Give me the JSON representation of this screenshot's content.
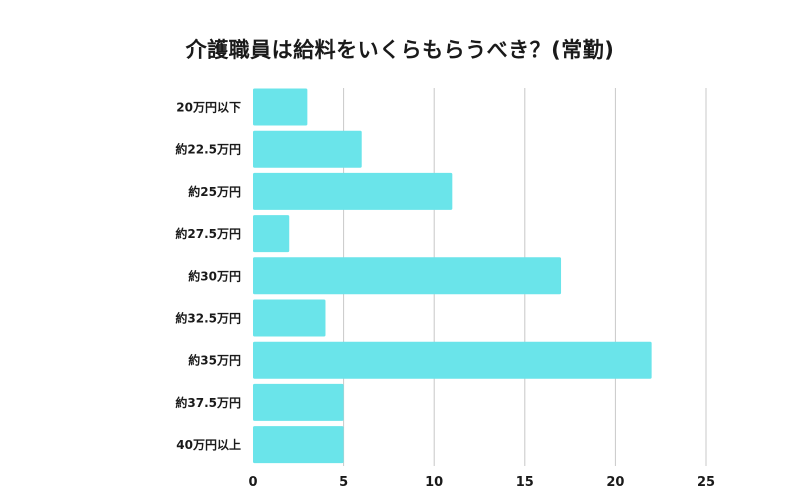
{
  "chart_data": {
    "type": "bar",
    "orientation": "horizontal",
    "title": "介護職員は給料をいくらもらうべき？(常勤)",
    "categories": [
      "20万円以下",
      "約22.5万円",
      "約25万円",
      "約27.5万円",
      "約30万円",
      "約32.5万円",
      "約35万円",
      "約37.5万円",
      "40万円以上"
    ],
    "values": [
      3,
      6,
      11,
      2,
      17,
      4,
      22,
      5,
      5
    ],
    "xlim": [
      0,
      25
    ],
    "xticks": [
      "0",
      "5",
      "10",
      "15",
      "20",
      "25"
    ],
    "xlabel": "",
    "ylabel": "",
    "grid": true,
    "bar_color": "#6ae4ea"
  }
}
